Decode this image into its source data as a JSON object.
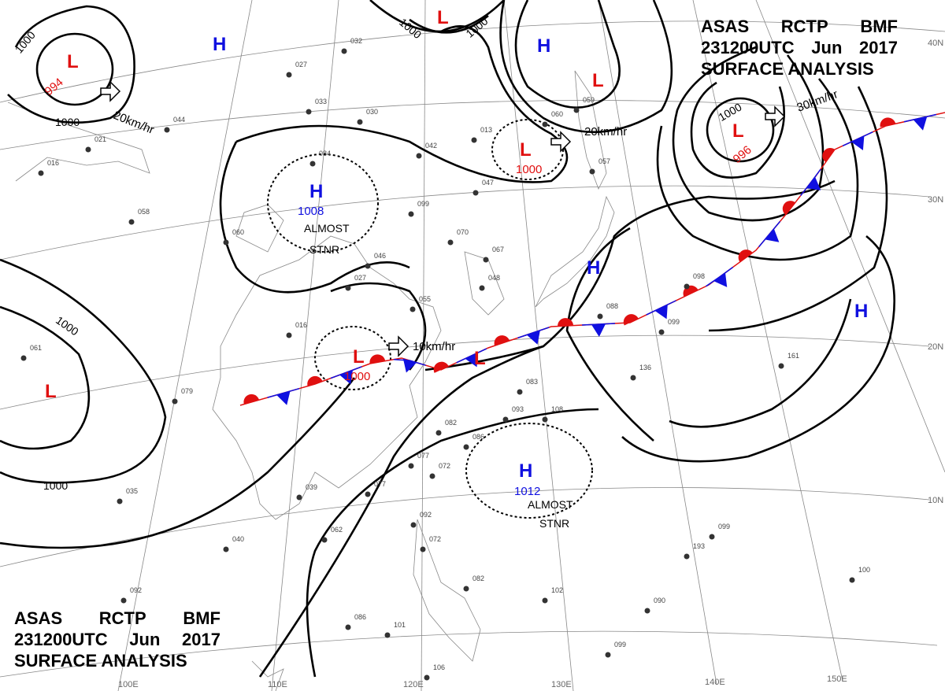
{
  "title": {
    "line1": [
      "ASAS",
      "RCTP",
      "BMF"
    ],
    "line2": [
      "231200UTC",
      "Jun",
      "2017"
    ],
    "line3": "SURFACE ANALYSIS"
  },
  "centers": [
    {
      "type": "L",
      "value": "994"
    },
    {
      "type": "H",
      "value": ""
    },
    {
      "type": "L",
      "value": ""
    },
    {
      "type": "H",
      "value": ""
    },
    {
      "type": "L",
      "value": ""
    },
    {
      "type": "L",
      "value": "996"
    },
    {
      "type": "L",
      "value": "1000"
    },
    {
      "type": "H",
      "value": "1008"
    },
    {
      "type": "H",
      "value": ""
    },
    {
      "type": "H",
      "value": ""
    },
    {
      "type": "L",
      "value": "1000"
    },
    {
      "type": "L",
      "value": ""
    },
    {
      "type": "L",
      "value": ""
    },
    {
      "type": "H",
      "value": "1012"
    }
  ],
  "notes": {
    "almost_stnr_1": "ALMOST",
    "almost_stnr_2": "STNR"
  },
  "motion": [
    "20km/hr",
    "20km/hr",
    "30km/hr",
    "10km/hr"
  ],
  "isobar_labels": [
    "1000",
    "1000",
    "1000",
    "1000",
    "1000",
    "1000",
    "1000"
  ],
  "latitudes": [
    "40N",
    "30N",
    "20N",
    "10N"
  ],
  "longitudes": [
    "100E",
    "110E",
    "120E",
    "130E",
    "140E",
    "150E"
  ],
  "stations": [
    "032",
    "027",
    "033",
    "030",
    "044",
    "021",
    "016",
    "084",
    "042",
    "013",
    "060",
    "059",
    "057",
    "047",
    "058",
    "060",
    "099",
    "070",
    "067",
    "046",
    "048",
    "027",
    "055",
    "016",
    "061",
    "099",
    "088",
    "098",
    "083",
    "093",
    "108",
    "086",
    "082",
    "077",
    "072",
    "077",
    "039",
    "062",
    "040",
    "092",
    "072",
    "082",
    "102",
    "090",
    "099",
    "100",
    "136",
    "161",
    "099",
    "193",
    "086",
    "101",
    "106",
    "035",
    "092",
    "079"
  ],
  "colors": {
    "high": "#1010e0",
    "low": "#e01010",
    "warm_front": "#e01010",
    "cold_front": "#1010e0"
  }
}
